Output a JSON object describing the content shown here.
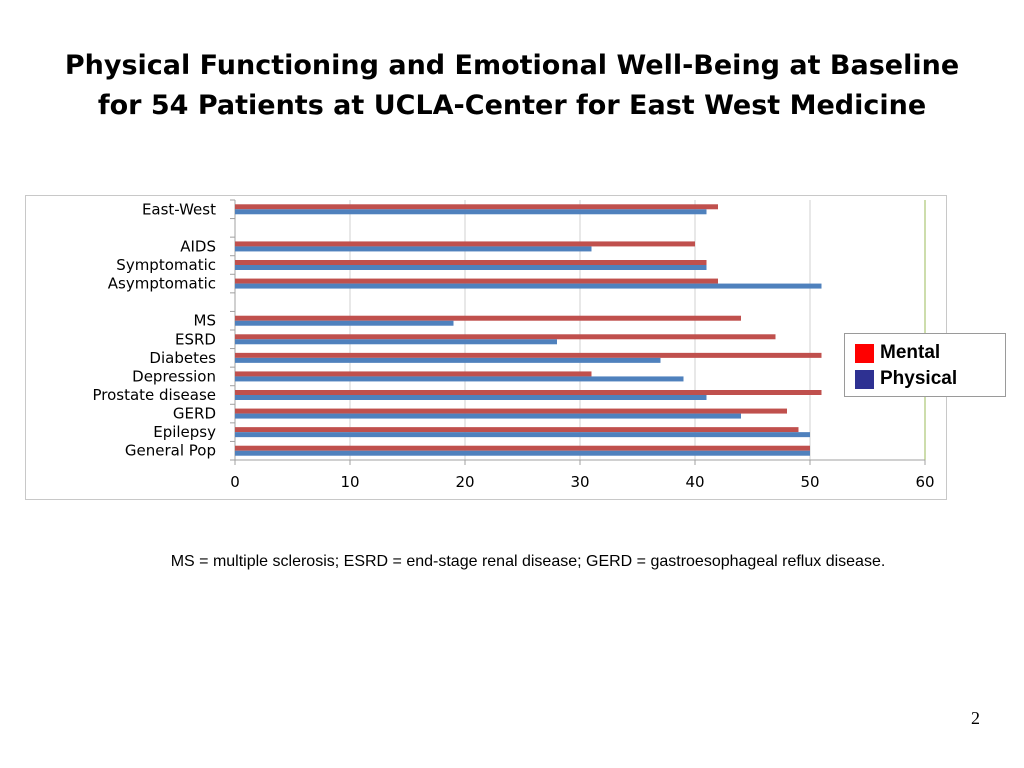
{
  "title": {
    "line1": "Physical Functioning and Emotional Well-Being at Baseline",
    "line2": "for 54 Patients at UCLA-Center for East West Medicine"
  },
  "footnote": "MS = multiple sclerosis; ESRD =  end-stage renal disease; GERD = gastroesophageal reflux disease.",
  "page_number": "2",
  "legend": [
    {
      "label": "Mental",
      "color": "#ff0000"
    },
    {
      "label": "Physical",
      "color": "#2e3192"
    }
  ],
  "chart_data": {
    "type": "bar",
    "orientation": "horizontal",
    "categories": [
      "East-West",
      "",
      "AIDS",
      "Symptomatic",
      "Asymptomatic",
      "",
      "MS",
      "ESRD",
      "Diabetes",
      "Depression",
      "Prostate disease",
      "GERD",
      "Epilepsy",
      "General Pop"
    ],
    "series": [
      {
        "name": "Mental",
        "color": "#c0504d",
        "values": [
          42,
          null,
          40,
          41,
          42,
          null,
          44,
          47,
          51,
          31,
          51,
          48,
          49,
          50
        ]
      },
      {
        "name": "Physical",
        "color": "#4f81bd",
        "values": [
          41,
          null,
          31,
          41,
          51,
          null,
          19,
          28,
          37,
          39,
          41,
          44,
          50,
          50
        ]
      }
    ],
    "xlim": [
      0,
      60
    ],
    "xticks": [
      0,
      10,
      20,
      30,
      40,
      50,
      60
    ],
    "grid": true
  }
}
